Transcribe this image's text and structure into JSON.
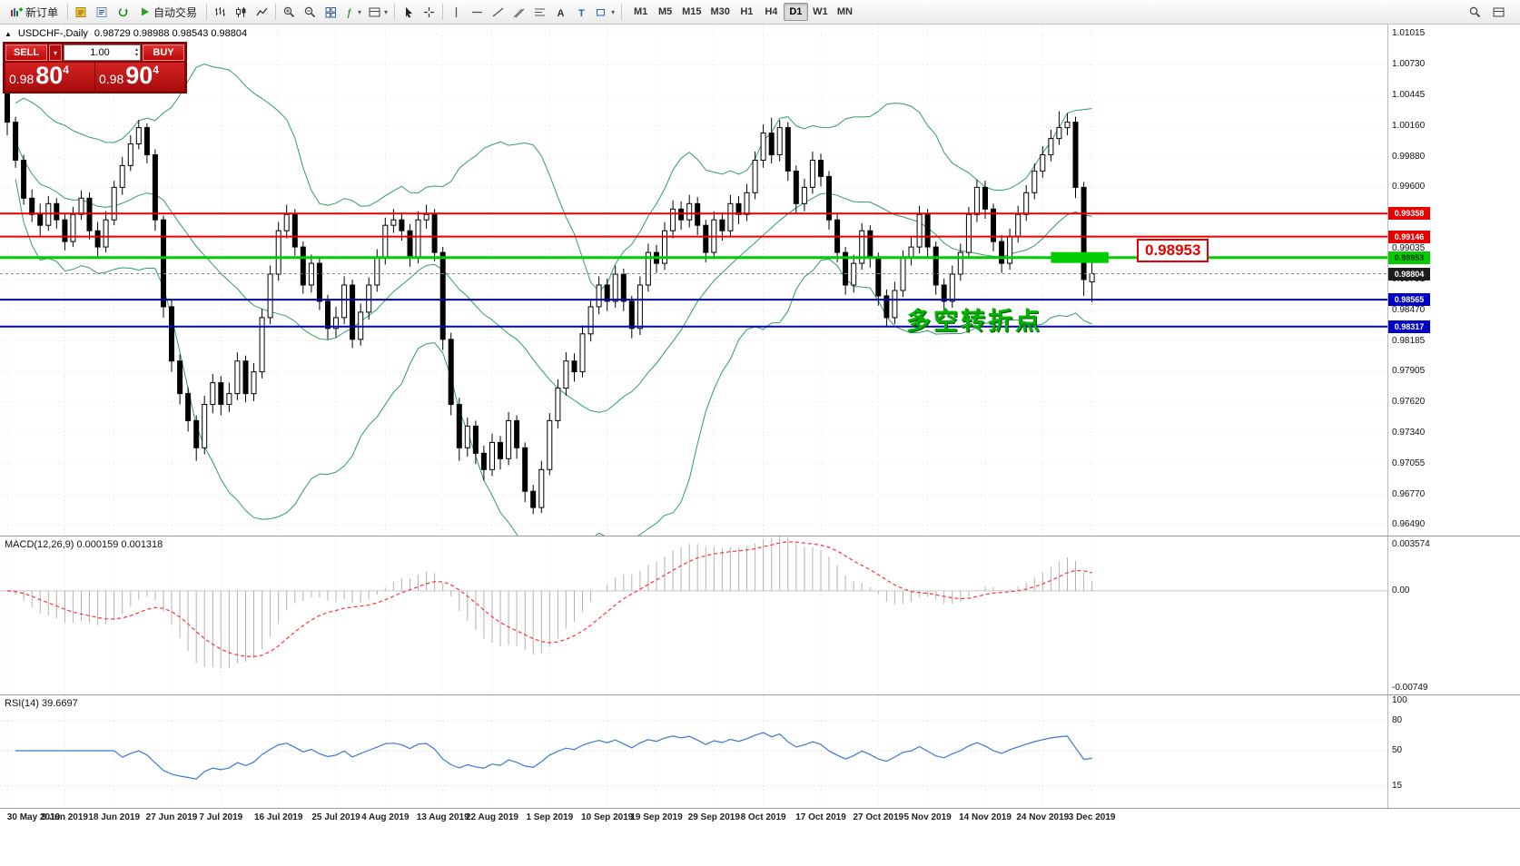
{
  "toolbar": {
    "groups": [
      [
        {
          "name": "new-order-button",
          "icon": "new-order",
          "label": "新订单"
        }
      ],
      [
        {
          "name": "metaeditor-button",
          "icon": "metaeditor"
        },
        {
          "name": "market-watch-button",
          "icon": "market-watch"
        },
        {
          "name": "refresh-button",
          "icon": "refresh"
        },
        {
          "name": "autotrading-button",
          "icon": "autotrading",
          "label": "自动交易"
        }
      ],
      [
        {
          "name": "bar-chart-button",
          "icon": "bars"
        },
        {
          "name": "candlestick-chart-button",
          "icon": "candles"
        },
        {
          "name": "line-chart-button",
          "icon": "linechart"
        }
      ],
      [
        {
          "name": "zoom-in-button",
          "icon": "zoom-in"
        },
        {
          "name": "zoom-out-button",
          "icon": "zoom-out"
        },
        {
          "name": "tile-windows-button",
          "icon": "tile"
        },
        {
          "name": "indicators-button",
          "icon": "indicators",
          "caret": true
        },
        {
          "name": "templates-button",
          "icon": "layout",
          "caret": true
        }
      ],
      [
        {
          "name": "cursor-button",
          "icon": "cursor"
        },
        {
          "name": "crosshair-button",
          "icon": "crosshair"
        }
      ],
      [
        {
          "name": "vertical-line-button",
          "icon": "vline"
        },
        {
          "name": "horizontal-line-button",
          "icon": "hline"
        },
        {
          "name": "trendline-button",
          "icon": "trendline"
        },
        {
          "name": "channel-button",
          "icon": "channel"
        },
        {
          "name": "fibonacci-button",
          "icon": "fibo"
        },
        {
          "name": "text-button",
          "icon": "text"
        },
        {
          "name": "label-button",
          "icon": "label"
        },
        {
          "name": "shapes-button",
          "icon": "shapes",
          "caret": true
        }
      ]
    ],
    "timeframes": {
      "items": [
        "M1",
        "M5",
        "M15",
        "M30",
        "H1",
        "H4",
        "D1",
        "W1",
        "MN"
      ],
      "active": "D1"
    },
    "right_buttons": [
      {
        "name": "search-button",
        "icon": "search"
      },
      {
        "name": "window-layout-button",
        "icon": "layout"
      }
    ]
  },
  "chart": {
    "title_symbol": "USDCHF-,Daily",
    "title_ohlc": "0.98729 0.98988 0.98543 0.98804"
  },
  "trade_panel": {
    "sell_label": "SELL",
    "buy_label": "BUY",
    "volume": "1.00",
    "sell_price_prefix": "0.98",
    "sell_price_big": "80",
    "sell_price_sup": "4",
    "buy_price_prefix": "0.98",
    "buy_price_big": "90",
    "buy_price_sup": "4"
  },
  "annotation": {
    "text": "多空转折点",
    "color": "#00b400"
  },
  "level_label": {
    "text": "0.98953",
    "color": "#e60000"
  },
  "chart_data": [
    {
      "type": "candlestick",
      "symbol": "USDCHF",
      "timeframe": "Daily",
      "ohlc_display": {
        "open": 0.98729,
        "high": 0.98988,
        "low": 0.98543,
        "close": 0.98804
      },
      "x_dates": [
        "30 May 2019",
        "9 Jun 2019",
        "18 Jun 2019",
        "27 Jun 2019",
        "7 Jul 2019",
        "16 Jul 2019",
        "25 Jul 2019",
        "4 Aug 2019",
        "13 Aug 2019",
        "22 Aug 2019",
        "1 Sep 2019",
        "10 Sep 2019",
        "19 Sep 2019",
        "29 Sep 2019",
        "8 Oct 2019",
        "17 Oct 2019",
        "27 Oct 2019",
        "5 Nov 2019",
        "14 Nov 2019",
        "24 Nov 2019",
        "3 Dec 2019"
      ],
      "date_tick_indices": [
        0,
        7,
        13,
        20,
        26,
        33,
        40,
        46,
        53,
        59,
        66,
        73,
        79,
        86,
        92,
        99,
        106,
        112,
        119,
        126,
        132
      ],
      "ylim": [
        0.964,
        1.011
      ],
      "y_ticks": [
        1.01015,
        1.0073,
        1.00445,
        1.0016,
        0.9988,
        0.996,
        0.99035,
        0.98751,
        0.9847,
        0.98185,
        0.97905,
        0.9762,
        0.9734,
        0.97055,
        0.9677,
        0.9649
      ],
      "overlays": {
        "bollinger": {
          "period": 20,
          "deviation": 2,
          "color": "#2f9e62"
        }
      },
      "hlines": [
        {
          "price": 0.99358,
          "label": "0.99358",
          "color": "#e60000",
          "width": 2
        },
        {
          "price": 0.99146,
          "label": "0.99146",
          "color": "#e60000",
          "width": 2
        },
        {
          "price": 0.98953,
          "label": "0.98953",
          "color": "#00cc00",
          "width": 3,
          "badge_text": "#003300"
        },
        {
          "price": 0.98565,
          "label": "0.98565",
          "color": "#0000c8",
          "width": 2
        },
        {
          "price": 0.98317,
          "label": "0.98317",
          "color": "#0000c8",
          "width": 2
        }
      ],
      "current_price": {
        "price": 0.98804,
        "label": "0.98804",
        "badge_bg": "#1c1c1c"
      },
      "highlight_rect": {
        "price": 0.98953,
        "from_index": 127,
        "to_index": 134,
        "color": "#00cc00"
      },
      "ohlc": [
        [
          1.005,
          1.0055,
          1.0008,
          1.002
        ],
        [
          1.002,
          1.0025,
          0.9978,
          0.9985
        ],
        [
          0.9985,
          0.999,
          0.9944,
          0.995
        ],
        [
          0.995,
          0.9958,
          0.9928,
          0.9935
        ],
        [
          0.9935,
          0.9945,
          0.9915,
          0.9925
        ],
        [
          0.9925,
          0.9952,
          0.992,
          0.9945
        ],
        [
          0.9945,
          0.995,
          0.9922,
          0.993
        ],
        [
          0.993,
          0.9936,
          0.9902,
          0.991
        ],
        [
          0.991,
          0.9942,
          0.9905,
          0.9935
        ],
        [
          0.9935,
          0.9957,
          0.993,
          0.995
        ],
        [
          0.995,
          0.9955,
          0.9912,
          0.992
        ],
        [
          0.992,
          0.9928,
          0.9896,
          0.9905
        ],
        [
          0.9905,
          0.9938,
          0.99,
          0.993
        ],
        [
          0.993,
          0.9966,
          0.9925,
          0.996
        ],
        [
          0.996,
          0.9988,
          0.9953,
          0.998
        ],
        [
          0.998,
          1.0008,
          0.9975,
          1.0
        ],
        [
          1.0,
          1.0022,
          0.9995,
          1.0015
        ],
        [
          1.0015,
          1.0019,
          0.9982,
          0.999
        ],
        [
          0.999,
          0.9995,
          0.992,
          0.993
        ],
        [
          0.993,
          0.9934,
          0.984,
          0.985
        ],
        [
          0.985,
          0.9856,
          0.979,
          0.98
        ],
        [
          0.98,
          0.9806,
          0.976,
          0.977
        ],
        [
          0.977,
          0.9776,
          0.9735,
          0.9745
        ],
        [
          0.9745,
          0.975,
          0.9708,
          0.972
        ],
        [
          0.972,
          0.9768,
          0.9714,
          0.976
        ],
        [
          0.976,
          0.9788,
          0.9752,
          0.978
        ],
        [
          0.978,
          0.9786,
          0.975,
          0.976
        ],
        [
          0.976,
          0.978,
          0.9753,
          0.977
        ],
        [
          0.977,
          0.9808,
          0.9764,
          0.98
        ],
        [
          0.98,
          0.9805,
          0.9762,
          0.977
        ],
        [
          0.977,
          0.9798,
          0.9763,
          0.979
        ],
        [
          0.979,
          0.9848,
          0.9784,
          0.984
        ],
        [
          0.984,
          0.9888,
          0.9834,
          0.988
        ],
        [
          0.988,
          0.9928,
          0.9874,
          0.992
        ],
        [
          0.992,
          0.9944,
          0.9913,
          0.9935
        ],
        [
          0.9935,
          0.994,
          0.9897,
          0.9905
        ],
        [
          0.9905,
          0.991,
          0.9862,
          0.987
        ],
        [
          0.987,
          0.9898,
          0.9863,
          0.989
        ],
        [
          0.989,
          0.9895,
          0.9847,
          0.9855
        ],
        [
          0.9855,
          0.9861,
          0.982,
          0.983
        ],
        [
          0.983,
          0.985,
          0.9822,
          0.984
        ],
        [
          0.984,
          0.9878,
          0.9834,
          0.987
        ],
        [
          0.987,
          0.9875,
          0.9812,
          0.982
        ],
        [
          0.982,
          0.9853,
          0.9814,
          0.9845
        ],
        [
          0.9845,
          0.9877,
          0.9838,
          0.987
        ],
        [
          0.987,
          0.9903,
          0.9864,
          0.9895
        ],
        [
          0.9895,
          0.9932,
          0.9889,
          0.9925
        ],
        [
          0.9925,
          0.994,
          0.9918,
          0.993
        ],
        [
          0.993,
          0.9937,
          0.9911,
          0.992
        ],
        [
          0.992,
          0.9926,
          0.9887,
          0.9895
        ],
        [
          0.9895,
          0.9938,
          0.989,
          0.993
        ],
        [
          0.993,
          0.9944,
          0.9922,
          0.9935
        ],
        [
          0.9935,
          0.994,
          0.9892,
          0.99
        ],
        [
          0.99,
          0.9905,
          0.981,
          0.982
        ],
        [
          0.982,
          0.9826,
          0.975,
          0.976
        ],
        [
          0.976,
          0.9766,
          0.9708,
          0.972
        ],
        [
          0.972,
          0.9748,
          0.9712,
          0.974
        ],
        [
          0.974,
          0.9745,
          0.9705,
          0.9715
        ],
        [
          0.9715,
          0.9722,
          0.969,
          0.97
        ],
        [
          0.97,
          0.9733,
          0.9694,
          0.9725
        ],
        [
          0.9725,
          0.9731,
          0.97,
          0.971
        ],
        [
          0.971,
          0.9753,
          0.9704,
          0.9745
        ],
        [
          0.9745,
          0.975,
          0.971,
          0.972
        ],
        [
          0.972,
          0.9725,
          0.967,
          0.968
        ],
        [
          0.968,
          0.9686,
          0.9659,
          0.9665
        ],
        [
          0.9665,
          0.9708,
          0.966,
          0.97
        ],
        [
          0.97,
          0.9752,
          0.9695,
          0.9745
        ],
        [
          0.9745,
          0.9783,
          0.9738,
          0.9775
        ],
        [
          0.9775,
          0.9808,
          0.9768,
          0.98
        ],
        [
          0.98,
          0.9807,
          0.9781,
          0.979
        ],
        [
          0.979,
          0.9833,
          0.9785,
          0.9825
        ],
        [
          0.9825,
          0.9857,
          0.9818,
          0.985
        ],
        [
          0.985,
          0.9878,
          0.9843,
          0.987
        ],
        [
          0.987,
          0.9876,
          0.9846,
          0.9855
        ],
        [
          0.9855,
          0.9888,
          0.9849,
          0.988
        ],
        [
          0.988,
          0.9885,
          0.9846,
          0.9855
        ],
        [
          0.9855,
          0.986,
          0.9821,
          0.983
        ],
        [
          0.983,
          0.9878,
          0.9824,
          0.987
        ],
        [
          0.987,
          0.9908,
          0.9864,
          0.99
        ],
        [
          0.99,
          0.9907,
          0.9881,
          0.989
        ],
        [
          0.989,
          0.9928,
          0.9884,
          0.992
        ],
        [
          0.992,
          0.9948,
          0.9913,
          0.994
        ],
        [
          0.994,
          0.9947,
          0.9921,
          0.993
        ],
        [
          0.993,
          0.9953,
          0.9923,
          0.9945
        ],
        [
          0.9945,
          0.9951,
          0.9916,
          0.9925
        ],
        [
          0.9925,
          0.993,
          0.9891,
          0.99
        ],
        [
          0.99,
          0.9938,
          0.9894,
          0.993
        ],
        [
          0.993,
          0.9937,
          0.9911,
          0.992
        ],
        [
          0.992,
          0.9953,
          0.9914,
          0.9945
        ],
        [
          0.9945,
          0.9952,
          0.9926,
          0.9935
        ],
        [
          0.9935,
          0.9963,
          0.9929,
          0.9955
        ],
        [
          0.9955,
          0.9993,
          0.9949,
          0.9985
        ],
        [
          0.9985,
          1.0018,
          0.9978,
          1.001
        ],
        [
          1.001,
          1.0024,
          0.9982,
          0.999
        ],
        [
          0.999,
          1.0022,
          0.9984,
          1.0015
        ],
        [
          1.0015,
          1.002,
          0.9966,
          0.9975
        ],
        [
          0.9975,
          0.998,
          0.9936,
          0.9945
        ],
        [
          0.9945,
          0.9968,
          0.9938,
          0.996
        ],
        [
          0.996,
          0.9993,
          0.9954,
          0.9985
        ],
        [
          0.9985,
          0.9991,
          0.9961,
          0.997
        ],
        [
          0.997,
          0.9975,
          0.9921,
          0.993
        ],
        [
          0.993,
          0.9936,
          0.9891,
          0.99
        ],
        [
          0.99,
          0.9905,
          0.9861,
          0.987
        ],
        [
          0.987,
          0.9898,
          0.9863,
          0.989
        ],
        [
          0.989,
          0.9927,
          0.9884,
          0.992
        ],
        [
          0.992,
          0.9925,
          0.9886,
          0.9895
        ],
        [
          0.9895,
          0.99,
          0.9851,
          0.986
        ],
        [
          0.986,
          0.9866,
          0.9831,
          0.984
        ],
        [
          0.984,
          0.9873,
          0.9834,
          0.9865
        ],
        [
          0.9865,
          0.9902,
          0.9859,
          0.9895
        ],
        [
          0.9895,
          0.9914,
          0.9888,
          0.9905
        ],
        [
          0.9905,
          0.9943,
          0.9899,
          0.9935
        ],
        [
          0.9935,
          0.994,
          0.9896,
          0.9905
        ],
        [
          0.9905,
          0.991,
          0.9861,
          0.987
        ],
        [
          0.987,
          0.9876,
          0.9846,
          0.9855
        ],
        [
          0.9855,
          0.9888,
          0.9849,
          0.988
        ],
        [
          0.988,
          0.9908,
          0.9874,
          0.99
        ],
        [
          0.99,
          0.9942,
          0.9894,
          0.9935
        ],
        [
          0.9935,
          0.9967,
          0.9928,
          0.996
        ],
        [
          0.996,
          0.9966,
          0.9931,
          0.994
        ],
        [
          0.994,
          0.9945,
          0.9901,
          0.991
        ],
        [
          0.991,
          0.9916,
          0.9881,
          0.989
        ],
        [
          0.989,
          0.9922,
          0.9884,
          0.9915
        ],
        [
          0.9915,
          0.9943,
          0.9909,
          0.9935
        ],
        [
          0.9935,
          0.9962,
          0.9929,
          0.9955
        ],
        [
          0.9955,
          0.9982,
          0.9949,
          0.9975
        ],
        [
          0.9975,
          0.9998,
          0.9969,
          0.999
        ],
        [
          0.999,
          1.0013,
          0.9984,
          1.0005
        ],
        [
          1.0005,
          1.003,
          0.9999,
          1.0015
        ],
        [
          1.0015,
          1.0028,
          1.0008,
          1.002
        ],
        [
          1.002,
          1.0025,
          0.995,
          0.996
        ],
        [
          0.996,
          0.9965,
          0.986,
          0.9875
        ],
        [
          0.98729,
          0.98988,
          0.98543,
          0.98804
        ]
      ]
    },
    {
      "type": "macd",
      "label": "MACD(12,26,9) 0.000159 0.001318",
      "params": {
        "fast": 12,
        "slow": 26,
        "signal": 9
      },
      "display_values": [
        0.000159,
        0.001318
      ],
      "ylim": [
        -0.008,
        0.0042
      ],
      "y_ticks": [
        {
          "v": 0.003574,
          "label": "0.003574"
        },
        {
          "v": 0,
          "label": "0.00"
        },
        {
          "v": -0.00749,
          "label": "-0.00749"
        }
      ],
      "colors": {
        "histogram": "#b2b2b2",
        "signal": "#ff3333"
      },
      "derived_from": "chart_data.0.ohlc closes"
    },
    {
      "type": "rsi",
      "label": "RSI(14) 39.6697",
      "period": 14,
      "current": 39.6697,
      "ylim": [
        0,
        100
      ],
      "levels": [
        80,
        50,
        15
      ],
      "y_ticks": [
        {
          "v": 100,
          "label": "100"
        },
        {
          "v": 80,
          "label": "80"
        },
        {
          "v": 50,
          "label": "50"
        },
        {
          "v": 15,
          "label": "15"
        }
      ],
      "color": "#3c78d2",
      "derived_from": "chart_data.0.ohlc closes"
    }
  ]
}
